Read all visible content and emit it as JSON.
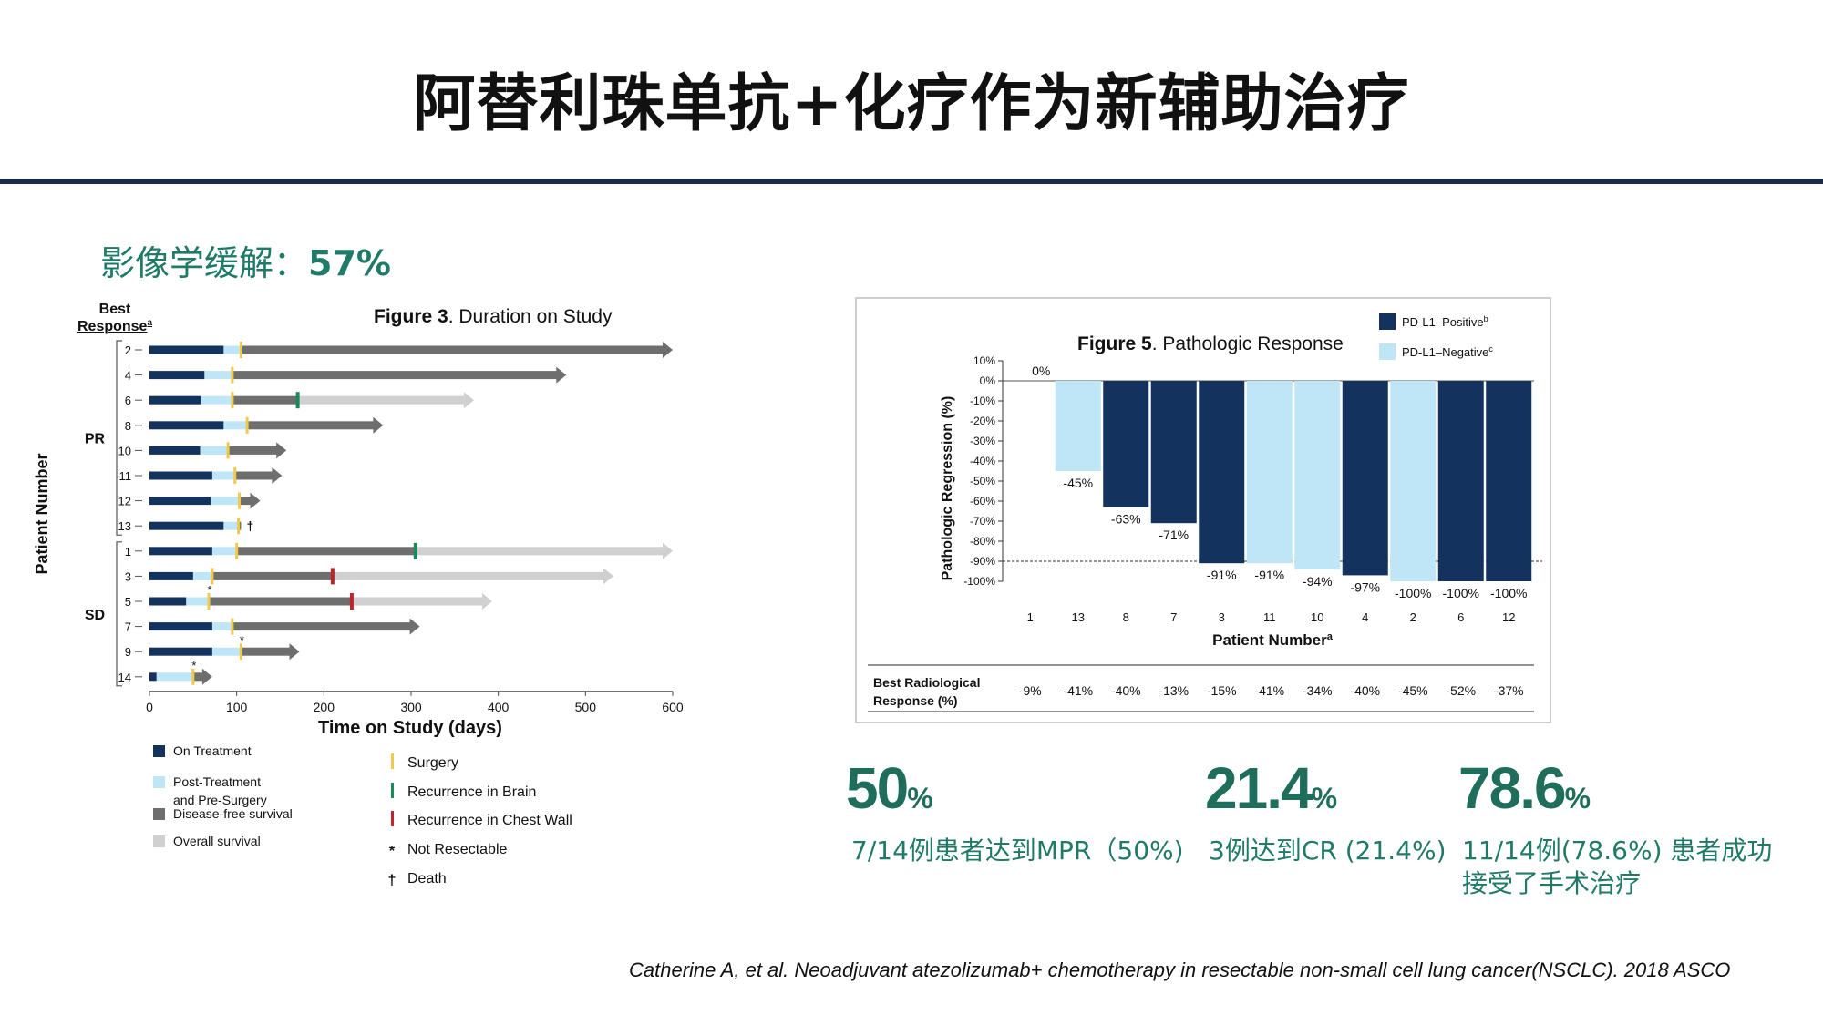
{
  "slide": {
    "title": "阿替利珠单抗+化疗作为新辅助治疗",
    "radiology_label": "影像学缓解：",
    "radiology_value": "57%",
    "citation": "Catherine A, et al. Neoadjuvant atezolizumab+ chemotherapy in resectable non-small cell lung cancer(NSCLC). 2018 ASCO"
  },
  "stats": [
    {
      "value": "50",
      "unit": "%",
      "description": "7/14例患者达到MPR（50%)"
    },
    {
      "value": "21.4",
      "unit": "%",
      "description": "3例达到CR (21.4%)"
    },
    {
      "value": "78.6",
      "unit": "%",
      "description": "11/14例(78.6%) 患者成功接受了手术治疗"
    }
  ],
  "colors": {
    "on_treatment": "#14325e",
    "post_treatment": "#bfe6f7",
    "dfs": "#6e6e6e",
    "os": "#d0d0d0",
    "surgery": "#f0c84a",
    "brain": "#1a8a5a",
    "chest_wall": "#c0242b",
    "pdl1_pos": "#14325e",
    "pdl1_neg": "#bfe6f7",
    "accent_green": "#1f7a68"
  },
  "chart_data": [
    {
      "type": "bar",
      "subtype": "swimmer",
      "title_bold": "Figure 3",
      "title_rest": ". Duration on Study",
      "xlabel": "Time on Study (days)",
      "ylabel": "Patient Number",
      "best_response_label": "Best Response",
      "best_response_sup": "a",
      "xlim": [
        0,
        600
      ],
      "xticks": [
        0,
        100,
        200,
        300,
        400,
        500,
        600
      ],
      "groups": [
        {
          "name": "PR",
          "first": 0,
          "last": 7
        },
        {
          "name": "SD",
          "first": 8,
          "last": 13
        }
      ],
      "patients": [
        {
          "id": "2",
          "on": 85,
          "surgery": 105,
          "dfs_end": 600,
          "os_end": null,
          "event_day": null,
          "event": null,
          "marker": null,
          "ongoing": true
        },
        {
          "id": "4",
          "on": 63,
          "surgery": 95,
          "dfs_end": 478,
          "os_end": null,
          "event_day": null,
          "event": null,
          "marker": null,
          "ongoing": true
        },
        {
          "id": "6",
          "on": 59,
          "surgery": 95,
          "dfs_end": 170,
          "os_end": 372,
          "event_day": 170,
          "event": "brain",
          "marker": null,
          "ongoing": true
        },
        {
          "id": "8",
          "on": 85,
          "surgery": 112,
          "dfs_end": 268,
          "os_end": null,
          "event_day": null,
          "event": null,
          "marker": null,
          "ongoing": true
        },
        {
          "id": "10",
          "on": 58,
          "surgery": 90,
          "dfs_end": 157,
          "os_end": null,
          "event_day": null,
          "event": null,
          "marker": null,
          "ongoing": true
        },
        {
          "id": "11",
          "on": 72,
          "surgery": 98,
          "dfs_end": 152,
          "os_end": null,
          "event_day": null,
          "event": null,
          "marker": null,
          "ongoing": true
        },
        {
          "id": "12",
          "on": 70,
          "surgery": 103,
          "dfs_end": 127,
          "os_end": null,
          "event_day": null,
          "event": null,
          "marker": null,
          "ongoing": true
        },
        {
          "id": "13",
          "on": 85,
          "surgery": 102,
          "dfs_end": 105,
          "os_end": null,
          "event_day": null,
          "event": null,
          "marker": "death",
          "ongoing": false
        },
        {
          "id": "1",
          "on": 72,
          "surgery": 100,
          "dfs_end": 305,
          "os_end": 600,
          "event_day": 305,
          "event": "brain",
          "marker": null,
          "ongoing": true
        },
        {
          "id": "3",
          "on": 50,
          "surgery": 72,
          "dfs_end": 210,
          "os_end": 532,
          "event_day": 210,
          "event": "chest",
          "marker": null,
          "ongoing": true
        },
        {
          "id": "5",
          "on": 42,
          "surgery": 68,
          "dfs_end": 232,
          "os_end": 393,
          "event_day": 232,
          "event": "chest",
          "marker": "not_resectable",
          "ongoing": true
        },
        {
          "id": "7",
          "on": 72,
          "surgery": 95,
          "dfs_end": 310,
          "os_end": null,
          "event_day": null,
          "event": null,
          "marker": null,
          "ongoing": true
        },
        {
          "id": "9",
          "on": 72,
          "surgery": 105,
          "dfs_end": 172,
          "os_end": null,
          "event_day": null,
          "event": null,
          "marker": "not_resectable",
          "ongoing": true
        },
        {
          "id": "14",
          "on": 8,
          "surgery": 50,
          "dfs_end": 72,
          "os_end": null,
          "event_day": null,
          "event": null,
          "marker": "not_resectable",
          "ongoing": true
        }
      ],
      "legend_left": [
        "On Treatment",
        "Post-Treatment\nand Pre-Surgery",
        "Disease-free survival",
        "Overall survival"
      ],
      "legend_right": [
        {
          "symbol": "surgery",
          "label": "Surgery"
        },
        {
          "symbol": "brain",
          "label": "Recurrence in Brain"
        },
        {
          "symbol": "chest",
          "label": "Recurrence in Chest Wall"
        },
        {
          "symbol": "*",
          "label": "Not Resectable"
        },
        {
          "symbol": "†",
          "label": "Death"
        }
      ]
    },
    {
      "type": "bar",
      "subtype": "waterfall",
      "title_bold": "Figure 5",
      "title_rest": ". Pathologic Response",
      "xlabel": "Patient Number",
      "xlabel_sup": "a",
      "ylabel": "Pathologic Regression (%)",
      "ylim": [
        -100,
        10
      ],
      "yticks": [
        10,
        0,
        -10,
        -20,
        -30,
        -40,
        -50,
        -60,
        -70,
        -80,
        -90,
        -100
      ],
      "threshold": -90,
      "categories": [
        "1",
        "13",
        "8",
        "7",
        "3",
        "11",
        "10",
        "4",
        "2",
        "6",
        "12"
      ],
      "values": [
        0,
        -45,
        -63,
        -71,
        -91,
        -91,
        -94,
        -97,
        -100,
        -100,
        -100
      ],
      "value_labels": [
        "0%",
        "-45%",
        "-63%",
        "-71%",
        "-91%",
        "-91%",
        "-94%",
        "-97%",
        "-100%",
        "-100%",
        "-100%"
      ],
      "pdl1": [
        "neg",
        "neg",
        "pos",
        "pos",
        "pos",
        "neg",
        "neg",
        "pos",
        "neg",
        "pos",
        "pos"
      ],
      "legend": [
        {
          "name": "PD-L1–Positive",
          "sup": "b"
        },
        {
          "name": "PD-L1–Negative",
          "sup": "c"
        }
      ],
      "table_label": "Best Radiological\nResponse (%)",
      "best_radiological_response": [
        "-9%",
        "-41%",
        "-40%",
        "-13%",
        "-15%",
        "-41%",
        "-34%",
        "-40%",
        "-45%",
        "-52%",
        "-37%"
      ]
    }
  ]
}
